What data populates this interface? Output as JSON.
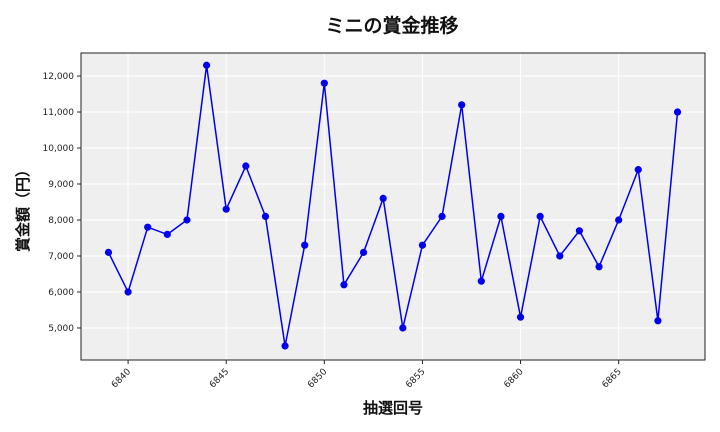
{
  "chart_data": {
    "type": "line",
    "title": "ミニの賞金推移",
    "xlabel": "抽選回号",
    "ylabel": "賞金額（円）",
    "x": [
      6839,
      6840,
      6841,
      6842,
      6843,
      6844,
      6845,
      6846,
      6847,
      6848,
      6849,
      6850,
      6851,
      6852,
      6853,
      6854,
      6855,
      6856,
      6857,
      6858,
      6859,
      6860,
      6861,
      6862,
      6863,
      6864,
      6865,
      6866,
      6867,
      6868
    ],
    "series": [
      {
        "values": [
          7100,
          6000,
          7800,
          7600,
          8000,
          12300,
          8300,
          9500,
          8100,
          4500,
          7300,
          11800,
          6200,
          7100,
          8600,
          5000,
          7300,
          8100,
          11200,
          6300,
          8100,
          5300,
          8100,
          7000,
          7700,
          6700,
          8000,
          9400,
          5200,
          11000
        ],
        "color": "#0000ee"
      }
    ],
    "xticks": [
      "6840",
      "6845",
      "6850",
      "6855",
      "6860",
      "6865"
    ],
    "yticks": [
      "5,000",
      "6,000",
      "7,000",
      "8,000",
      "9,000",
      "10,000",
      "11,000",
      "12,000"
    ],
    "xlim": [
      6837.6,
      6869.4
    ],
    "ylim": [
      4110,
      12640
    ],
    "grid": true,
    "background": "#efefef"
  }
}
